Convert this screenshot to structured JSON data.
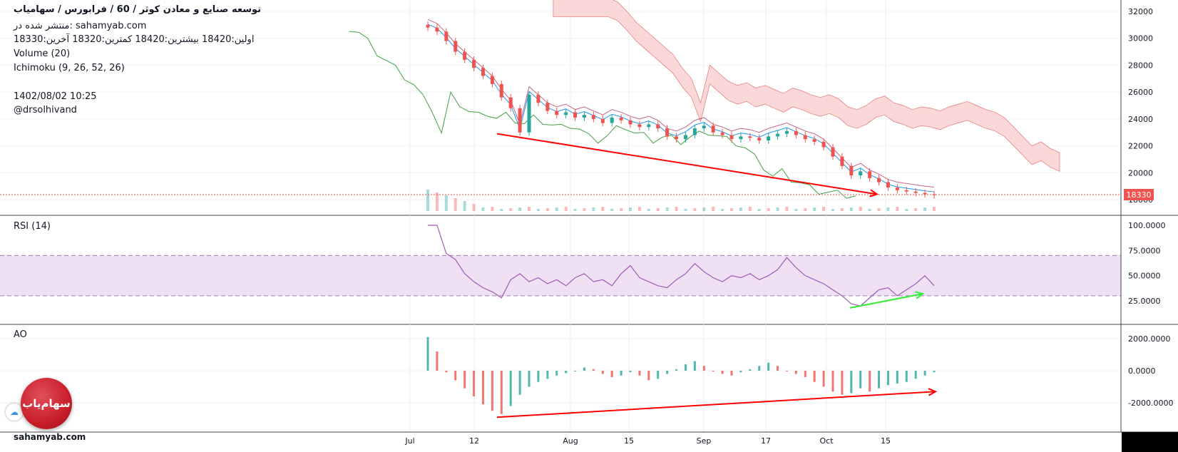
{
  "header": {
    "title": "توسعه صنایع و معادن کوثر /  60 /  فرابورس / سهامیاب",
    "published": "منتشر شده در: sahamyab.com",
    "ohlc": "اولین:18420  بیشترین:18420  کمترین:18320  آخرین:18330",
    "volume_label": "Volume (20)",
    "ichimoku_label": "Ichimoku (9, 26, 52, 26)",
    "datetime": "1402/08/02 10:25",
    "author": "@drsolhivand"
  },
  "panes": {
    "rsi_label": "RSI (14)",
    "ao_label": "AO"
  },
  "footer": {
    "site": "sahamyab.com",
    "logo_text": "سهام‌یاب"
  },
  "colors": {
    "up": "#26a69a",
    "down": "#ef5350",
    "cloud_bear": "#f8c8c8",
    "rsi_line": "#9c5bb5",
    "rsi_band": "#efe1f3",
    "trend_red": "#ff0000",
    "trend_green": "#33ee33",
    "lagging": "#43a047",
    "conversion": "#2196f3",
    "base": "#990033",
    "price_badge": "#ef5350"
  },
  "chart_data": [
    {
      "type": "candlestick",
      "title": "توسعه صنایع و معادن کوثر /  60 /  فرابورس / سهامیاب",
      "ylim": [
        17500,
        32500
      ],
      "y_ticks": [
        "32000",
        "30000",
        "28000",
        "26000",
        "24000",
        "22000",
        "20000",
        "18000"
      ],
      "last_price": 18330,
      "last_price_label": "18330",
      "x_ticks": [
        "Jul",
        "12",
        "Aug",
        "15",
        "Sep",
        "17",
        "Oct",
        "15"
      ],
      "series": [
        {
          "name": "Close",
          "values": [
            30800,
            30500,
            29800,
            29000,
            28400,
            27800,
            27200,
            26600,
            25600,
            24800,
            23000,
            25800,
            25200,
            24600,
            24300,
            24500,
            24100,
            24300,
            24000,
            23700,
            24100,
            23900,
            23600,
            23400,
            23600,
            23300,
            22700,
            22500,
            22800,
            23300,
            23500,
            23000,
            22800,
            22500,
            22700,
            22600,
            22400,
            22700,
            22900,
            23100,
            22800,
            22500,
            22300,
            21900,
            21200,
            20500,
            19800,
            20100,
            19600,
            19300,
            18900,
            18700,
            18600,
            18500,
            18400,
            18330
          ]
        }
      ],
      "trendline": {
        "from": [
          "12",
          22900
        ],
        "to": [
          "Oct 15",
          18400
        ],
        "color": "red"
      }
    },
    {
      "type": "line",
      "title": "RSI (14)",
      "ylim": [
        0,
        110
      ],
      "y_ticks": [
        "100.0000",
        "75.0000",
        "50.0000",
        "25.0000"
      ],
      "bands": [
        30,
        70
      ],
      "series": [
        {
          "name": "RSI (14)",
          "values": [
            100,
            100,
            72,
            66,
            52,
            44,
            38,
            34,
            28,
            46,
            52,
            44,
            48,
            42,
            46,
            40,
            48,
            52,
            44,
            46,
            40,
            52,
            60,
            48,
            44,
            40,
            38,
            46,
            52,
            62,
            54,
            48,
            44,
            50,
            48,
            52,
            46,
            50,
            56,
            68,
            58,
            50,
            46,
            42,
            36,
            30,
            22,
            20,
            28,
            36,
            38,
            30,
            36,
            42,
            50,
            40
          ]
        }
      ],
      "trendline": {
        "from": [
          "Oct",
          18
        ],
        "to": [
          "Oct 15",
          32
        ],
        "color": "green"
      }
    },
    {
      "type": "bar",
      "title": "AO",
      "ylim": [
        -2700,
        2600
      ],
      "y_ticks": [
        "2000.0000",
        "0.0000",
        "-2000.0000"
      ],
      "series": [
        {
          "name": "AO",
          "values": [
            2100,
            1200,
            -100,
            -600,
            -1100,
            -1600,
            -2100,
            -2500,
            -2700,
            -2200,
            -1500,
            -1000,
            -700,
            -500,
            -300,
            -150,
            0,
            200,
            100,
            -200,
            -400,
            -300,
            -100,
            -300,
            -600,
            -500,
            -200,
            100,
            400,
            600,
            300,
            0,
            -200,
            -300,
            -100,
            100,
            300,
            500,
            300,
            0,
            -200,
            -400,
            -700,
            -1000,
            -1300,
            -1500,
            -1400,
            -1100,
            -1300,
            -1100,
            -900,
            -800,
            -700,
            -500,
            -300,
            -100
          ]
        }
      ],
      "trendline": {
        "from": [
          "12",
          -2900
        ],
        "to": [
          "Oct 15",
          -1300
        ],
        "color": "red"
      }
    }
  ]
}
